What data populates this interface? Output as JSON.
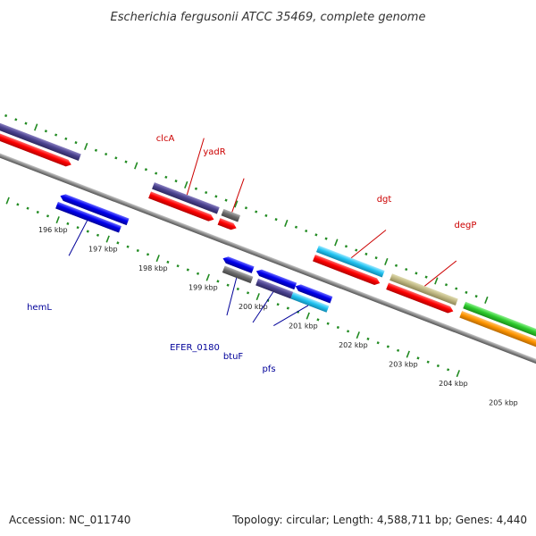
{
  "title": "Escherichia fergusonii ATCC 35469, complete genome",
  "footer": {
    "accession": "Accession: NC_011740",
    "summary": "Topology: circular; Length: 4,588,711 bp; Genes: 4,440"
  },
  "colors": {
    "backbone": "#8a8a8a",
    "forward_cds": "#ff0000",
    "reverse_cds": "#0000ff",
    "ticks": "#228b22",
    "label_red": "#cc0000",
    "label_blue": "#000099"
  },
  "scale_labels": [
    {
      "label": "196 kbp",
      "kbp": 196
    },
    {
      "label": "197 kbp",
      "kbp": 197
    },
    {
      "label": "198 kbp",
      "kbp": 198
    },
    {
      "label": "199 kbp",
      "kbp": 199
    },
    {
      "label": "200 kbp",
      "kbp": 200
    },
    {
      "label": "201 kbp",
      "kbp": 201
    },
    {
      "label": "202 kbp",
      "kbp": 202
    },
    {
      "label": "203 kbp",
      "kbp": 203
    },
    {
      "label": "204 kbp",
      "kbp": 204
    },
    {
      "label": "205 kbp",
      "kbp": 205
    }
  ],
  "gene_labels_upper": [
    "clcA",
    "yadR",
    "dgt",
    "degP"
  ],
  "gene_labels_lower": [
    "hemL",
    "EFER_0180",
    "btuF",
    "pfs"
  ]
}
